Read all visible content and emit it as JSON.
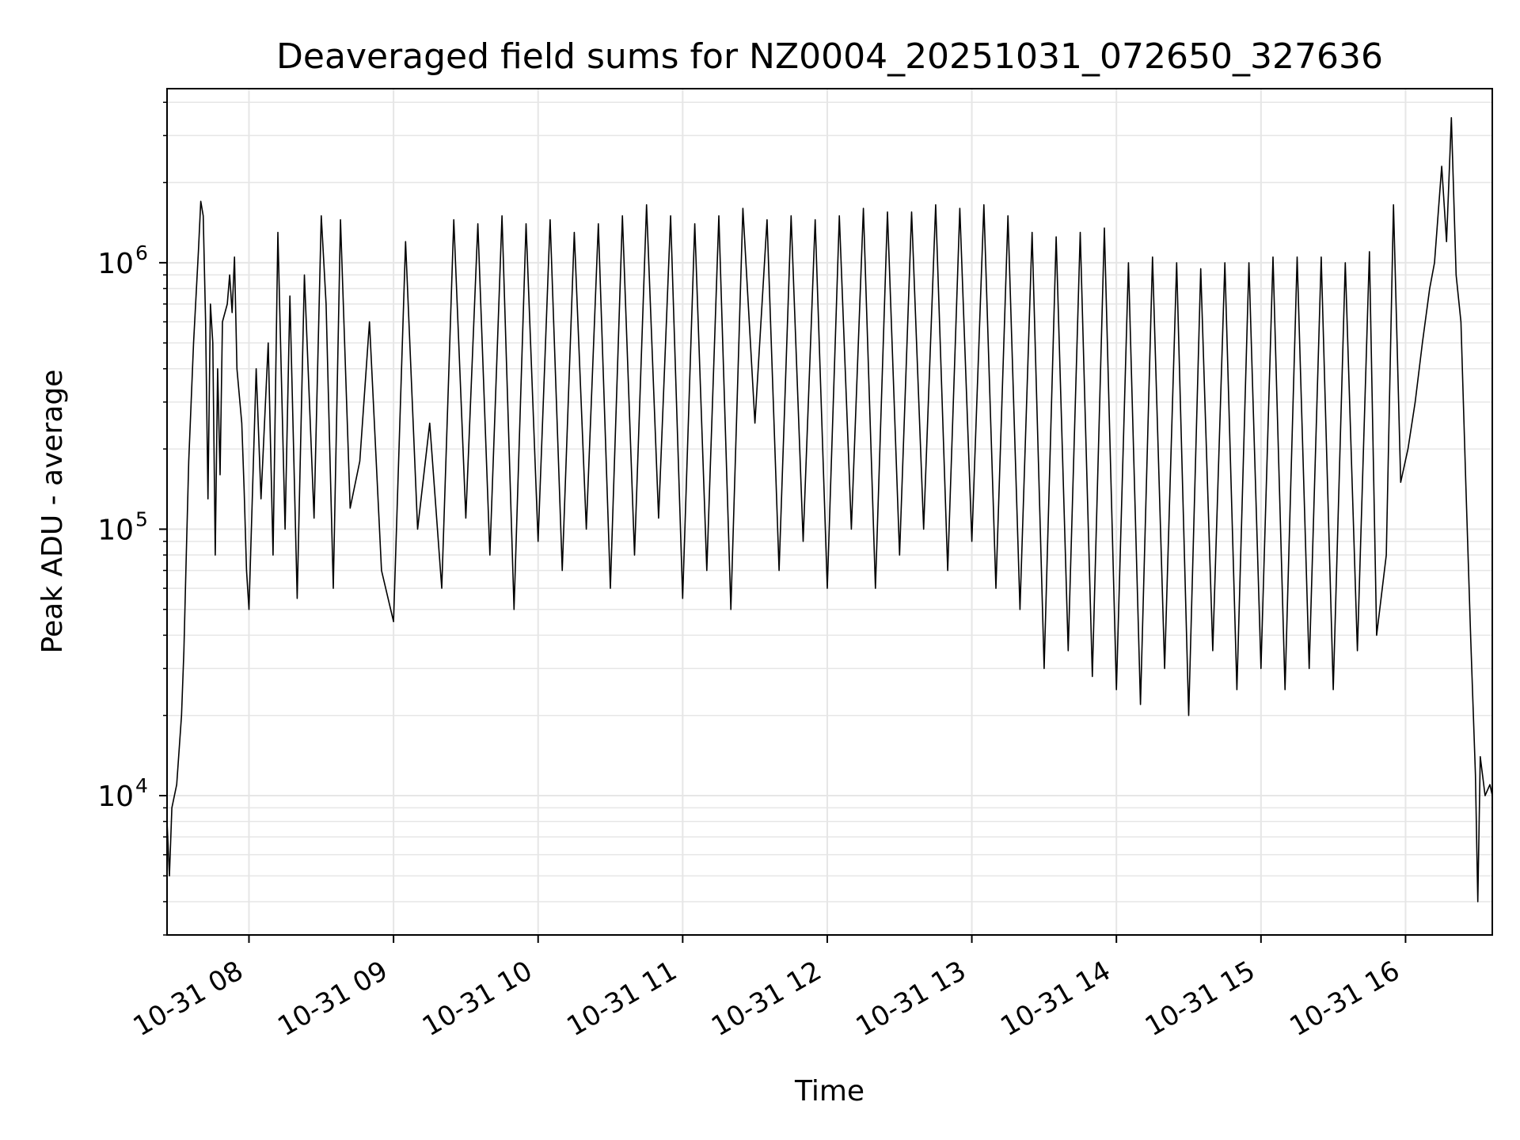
{
  "chart_data": {
    "type": "line",
    "title": "Deaveraged field sums for NZ0004_20251031_072650_327636",
    "xlabel": "Time",
    "ylabel": "Peak ADU - average",
    "y_scale": "log",
    "ylim": [
      3000,
      4500000
    ],
    "xlim": [
      "2025-10-31 07:26",
      "2025-10-31 16:36"
    ],
    "grid": true,
    "line_color": "#000000",
    "grid_color": "#e6e6e6",
    "x_ticks": [
      {
        "value": "2025-10-31 08:00",
        "label": "10-31 08"
      },
      {
        "value": "2025-10-31 09:00",
        "label": "10-31 09"
      },
      {
        "value": "2025-10-31 10:00",
        "label": "10-31 10"
      },
      {
        "value": "2025-10-31 11:00",
        "label": "10-31 11"
      },
      {
        "value": "2025-10-31 12:00",
        "label": "10-31 12"
      },
      {
        "value": "2025-10-31 13:00",
        "label": "10-31 13"
      },
      {
        "value": "2025-10-31 14:00",
        "label": "10-31 14"
      },
      {
        "value": "2025-10-31 15:00",
        "label": "10-31 15"
      },
      {
        "value": "2025-10-31 16:00",
        "label": "10-31 16"
      }
    ],
    "y_ticks": [
      {
        "value": 10000,
        "base": "10",
        "exp": "4"
      },
      {
        "value": 100000,
        "base": "10",
        "exp": "5"
      },
      {
        "value": 1000000,
        "base": "10",
        "exp": "6"
      }
    ],
    "series": [
      {
        "points": [
          [
            "2025-10-31 07:26",
            8000
          ],
          [
            "2025-10-31 07:27",
            5000
          ],
          [
            "2025-10-31 07:28",
            9000
          ],
          [
            "2025-10-31 07:30",
            11000
          ],
          [
            "2025-10-31 07:32",
            20000
          ],
          [
            "2025-10-31 07:33",
            35000
          ],
          [
            "2025-10-31 07:34",
            80000
          ],
          [
            "2025-10-31 07:35",
            180000
          ],
          [
            "2025-10-31 07:37",
            500000
          ],
          [
            "2025-10-31 07:39",
            1100000
          ],
          [
            "2025-10-31 07:40",
            1700000
          ],
          [
            "2025-10-31 07:41",
            1500000
          ],
          [
            "2025-10-31 07:42",
            600000
          ],
          [
            "2025-10-31 07:43",
            130000
          ],
          [
            "2025-10-31 07:44",
            700000
          ],
          [
            "2025-10-31 07:45",
            500000
          ],
          [
            "2025-10-31 07:46",
            80000
          ],
          [
            "2025-10-31 07:47",
            400000
          ],
          [
            "2025-10-31 07:48",
            160000
          ],
          [
            "2025-10-31 07:49",
            600000
          ],
          [
            "2025-10-31 07:51",
            700000
          ],
          [
            "2025-10-31 07:52",
            900000
          ],
          [
            "2025-10-31 07:53",
            650000
          ],
          [
            "2025-10-31 07:54",
            1050000
          ],
          [
            "2025-10-31 07:55",
            400000
          ],
          [
            "2025-10-31 07:57",
            250000
          ],
          [
            "2025-10-31 07:58",
            140000
          ],
          [
            "2025-10-31 07:59",
            70000
          ],
          [
            "2025-10-31 08:00",
            50000
          ],
          [
            "2025-10-31 08:03",
            400000
          ],
          [
            "2025-10-31 08:05",
            130000
          ],
          [
            "2025-10-31 08:08",
            500000
          ],
          [
            "2025-10-31 08:10",
            80000
          ],
          [
            "2025-10-31 08:12",
            1300000
          ],
          [
            "2025-10-31 08:15",
            100000
          ],
          [
            "2025-10-31 08:17",
            750000
          ],
          [
            "2025-10-31 08:20",
            55000
          ],
          [
            "2025-10-31 08:23",
            900000
          ],
          [
            "2025-10-31 08:27",
            110000
          ],
          [
            "2025-10-31 08:30",
            1500000
          ],
          [
            "2025-10-31 08:32",
            700000
          ],
          [
            "2025-10-31 08:35",
            60000
          ],
          [
            "2025-10-31 08:38",
            1450000
          ],
          [
            "2025-10-31 08:42",
            120000
          ],
          [
            "2025-10-31 08:46",
            180000
          ],
          [
            "2025-10-31 08:50",
            600000
          ],
          [
            "2025-10-31 08:55",
            70000
          ],
          [
            "2025-10-31 09:00",
            45000
          ],
          [
            "2025-10-31 09:05",
            1200000
          ],
          [
            "2025-10-31 09:10",
            100000
          ],
          [
            "2025-10-31 09:15",
            250000
          ],
          [
            "2025-10-31 09:20",
            60000
          ],
          [
            "2025-10-31 09:25",
            1450000
          ],
          [
            "2025-10-31 09:30",
            110000
          ],
          [
            "2025-10-31 09:35",
            1400000
          ],
          [
            "2025-10-31 09:40",
            80000
          ],
          [
            "2025-10-31 09:45",
            1500000
          ],
          [
            "2025-10-31 09:50",
            50000
          ],
          [
            "2025-10-31 09:55",
            1400000
          ],
          [
            "2025-10-31 10:00",
            90000
          ],
          [
            "2025-10-31 10:05",
            1450000
          ],
          [
            "2025-10-31 10:10",
            70000
          ],
          [
            "2025-10-31 10:15",
            1300000
          ],
          [
            "2025-10-31 10:20",
            100000
          ],
          [
            "2025-10-31 10:25",
            1400000
          ],
          [
            "2025-10-31 10:30",
            60000
          ],
          [
            "2025-10-31 10:35",
            1500000
          ],
          [
            "2025-10-31 10:40",
            80000
          ],
          [
            "2025-10-31 10:45",
            1650000
          ],
          [
            "2025-10-31 10:50",
            110000
          ],
          [
            "2025-10-31 10:55",
            1500000
          ],
          [
            "2025-10-31 11:00",
            55000
          ],
          [
            "2025-10-31 11:05",
            1400000
          ],
          [
            "2025-10-31 11:10",
            70000
          ],
          [
            "2025-10-31 11:15",
            1500000
          ],
          [
            "2025-10-31 11:20",
            50000
          ],
          [
            "2025-10-31 11:25",
            1600000
          ],
          [
            "2025-10-31 11:30",
            250000
          ],
          [
            "2025-10-31 11:35",
            1450000
          ],
          [
            "2025-10-31 11:40",
            70000
          ],
          [
            "2025-10-31 11:45",
            1500000
          ],
          [
            "2025-10-31 11:50",
            90000
          ],
          [
            "2025-10-31 11:55",
            1450000
          ],
          [
            "2025-10-31 12:00",
            60000
          ],
          [
            "2025-10-31 12:05",
            1500000
          ],
          [
            "2025-10-31 12:10",
            100000
          ],
          [
            "2025-10-31 12:15",
            1600000
          ],
          [
            "2025-10-31 12:20",
            60000
          ],
          [
            "2025-10-31 12:25",
            1550000
          ],
          [
            "2025-10-31 12:30",
            80000
          ],
          [
            "2025-10-31 12:35",
            1550000
          ],
          [
            "2025-10-31 12:40",
            100000
          ],
          [
            "2025-10-31 12:45",
            1650000
          ],
          [
            "2025-10-31 12:50",
            70000
          ],
          [
            "2025-10-31 12:55",
            1600000
          ],
          [
            "2025-10-31 13:00",
            90000
          ],
          [
            "2025-10-31 13:05",
            1650000
          ],
          [
            "2025-10-31 13:10",
            60000
          ],
          [
            "2025-10-31 13:15",
            1500000
          ],
          [
            "2025-10-31 13:20",
            50000
          ],
          [
            "2025-10-31 13:25",
            1300000
          ],
          [
            "2025-10-31 13:30",
            30000
          ],
          [
            "2025-10-31 13:35",
            1250000
          ],
          [
            "2025-10-31 13:40",
            35000
          ],
          [
            "2025-10-31 13:45",
            1300000
          ],
          [
            "2025-10-31 13:50",
            28000
          ],
          [
            "2025-10-31 13:55",
            1350000
          ],
          [
            "2025-10-31 14:00",
            25000
          ],
          [
            "2025-10-31 14:05",
            1000000
          ],
          [
            "2025-10-31 14:10",
            22000
          ],
          [
            "2025-10-31 14:15",
            1050000
          ],
          [
            "2025-10-31 14:20",
            30000
          ],
          [
            "2025-10-31 14:25",
            1000000
          ],
          [
            "2025-10-31 14:30",
            20000
          ],
          [
            "2025-10-31 14:35",
            950000
          ],
          [
            "2025-10-31 14:40",
            35000
          ],
          [
            "2025-10-31 14:45",
            1000000
          ],
          [
            "2025-10-31 14:50",
            25000
          ],
          [
            "2025-10-31 14:55",
            1000000
          ],
          [
            "2025-10-31 15:00",
            30000
          ],
          [
            "2025-10-31 15:05",
            1050000
          ],
          [
            "2025-10-31 15:10",
            25000
          ],
          [
            "2025-10-31 15:15",
            1050000
          ],
          [
            "2025-10-31 15:20",
            30000
          ],
          [
            "2025-10-31 15:25",
            1050000
          ],
          [
            "2025-10-31 15:30",
            25000
          ],
          [
            "2025-10-31 15:35",
            1000000
          ],
          [
            "2025-10-31 15:40",
            35000
          ],
          [
            "2025-10-31 15:45",
            1100000
          ],
          [
            "2025-10-31 15:48",
            40000
          ],
          [
            "2025-10-31 15:52",
            80000
          ],
          [
            "2025-10-31 15:55",
            1650000
          ],
          [
            "2025-10-31 15:58",
            150000
          ],
          [
            "2025-10-31 16:01",
            200000
          ],
          [
            "2025-10-31 16:04",
            300000
          ],
          [
            "2025-10-31 16:07",
            500000
          ],
          [
            "2025-10-31 16:10",
            800000
          ],
          [
            "2025-10-31 16:12",
            1000000
          ],
          [
            "2025-10-31 16:15",
            2300000
          ],
          [
            "2025-10-31 16:17",
            1200000
          ],
          [
            "2025-10-31 16:19",
            3500000
          ],
          [
            "2025-10-31 16:21",
            900000
          ],
          [
            "2025-10-31 16:23",
            600000
          ],
          [
            "2025-10-31 16:25",
            150000
          ],
          [
            "2025-10-31 16:27",
            40000
          ],
          [
            "2025-10-31 16:29",
            12000
          ],
          [
            "2025-10-31 16:30",
            4000
          ],
          [
            "2025-10-31 16:31",
            14000
          ],
          [
            "2025-10-31 16:33",
            10000
          ],
          [
            "2025-10-31 16:35",
            11000
          ],
          [
            "2025-10-31 16:36",
            10000
          ]
        ]
      }
    ]
  }
}
